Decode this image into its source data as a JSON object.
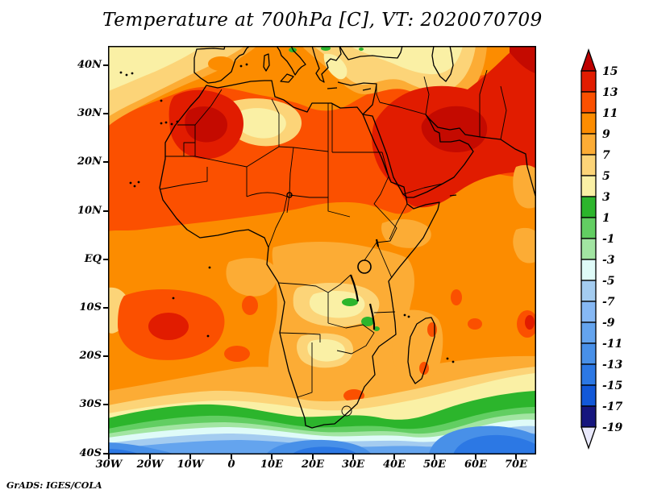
{
  "attribution": "GrADS: IGES/COLA",
  "chart_data": {
    "type": "heatmap",
    "title": "Temperature at 700hPa [C], VT: 2020070709",
    "variable": "Temperature",
    "pressure_level": "700hPa",
    "units": "C",
    "valid_time": "2020070709",
    "region_shown": "Africa, Middle East and surrounding oceans",
    "grid": false,
    "x_axis": {
      "ticks": [
        "30W",
        "20W",
        "10W",
        "0",
        "10E",
        "20E",
        "30E",
        "40E",
        "50E",
        "60E",
        "70E"
      ],
      "range": [
        "30W",
        "75E"
      ]
    },
    "y_axis": {
      "ticks": [
        "40N",
        "30N",
        "20N",
        "10N",
        "EQ",
        "10S",
        "20S",
        "30S",
        "40S"
      ],
      "range": [
        "40S",
        "44N"
      ]
    },
    "colorbar": {
      "position": "right",
      "labels": [
        "15",
        "13",
        "11",
        "9",
        "7",
        "5",
        "3",
        "1",
        "-1",
        "-3",
        "-5",
        "-7",
        "-9",
        "-11",
        "-13",
        "-15",
        "-17",
        "-19"
      ],
      "segment_colors_top_to_bottom": [
        "#E11C00",
        "#FB5000",
        "#FC8C00",
        "#FCAC35",
        "#FCD478",
        "#FAF0A5",
        "#2CB52C",
        "#62CE62",
        "#A2E5A2",
        "#DFFBF8",
        "#A4CCF0",
        "#86B8F4",
        "#64A4EE",
        "#4890E8",
        "#2C78E4",
        "#1258D8",
        "#16167E"
      ],
      "over_arrow_color": "#BE0000",
      "under_arrow_color": "#E9E9FC"
    },
    "sample_values": [
      {
        "region": "Northwest Africa (Morocco/Algeria)",
        "temp_c": "13 to 15"
      },
      {
        "region": "Arabian Peninsula, Persian Gulf and Iran",
        "temp_c": "13 to >15"
      },
      {
        "region": "Sahara and Sahel belt",
        "temp_c": "11 to 13"
      },
      {
        "region": "Top-left Atlantic / Iberia",
        "temp_c": "3 to 9"
      },
      {
        "region": "Turkey, Aegean and Caspian region",
        "temp_c": "3 to 7"
      },
      {
        "region": "Equatorial and East Africa",
        "temp_c": "7 to 11"
      },
      {
        "region": "Zambia/Zimbabwe plateau patches",
        "temp_c": "1 to 5"
      },
      {
        "region": "South African south coast (green band)",
        "temp_c": "-3 to 3"
      },
      {
        "region": "Southern Ocean near 40S",
        "temp_c": "-5 to -13"
      },
      {
        "region": "Madagascar and Mozambique Channel",
        "temp_c": "7 to 9"
      }
    ]
  }
}
